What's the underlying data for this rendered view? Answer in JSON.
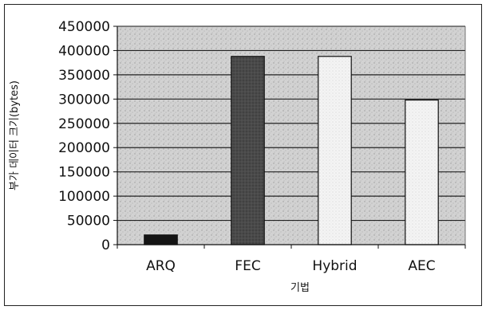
{
  "chart_data": {
    "type": "bar",
    "title": "",
    "xlabel": "기법",
    "ylabel": "부가 데이터 크기(bytes)",
    "categories": [
      "ARQ",
      "FEC",
      "Hybrid",
      "AEC"
    ],
    "values": [
      20000,
      388000,
      388000,
      298000
    ],
    "ylim": [
      0,
      450000
    ],
    "yticks": [
      0,
      50000,
      100000,
      150000,
      200000,
      250000,
      300000,
      350000,
      400000,
      450000
    ],
    "ytick_labels": [
      "0",
      "50000",
      "100000",
      "150000",
      "200000",
      "250000",
      "300000",
      "350000",
      "400000",
      "450000"
    ],
    "grid": true,
    "legend": "none",
    "bar_colors": [
      "#111111",
      "#555555",
      "#f2f2f2",
      "#f2f2f2"
    ],
    "plot_background": "#d6d6d6"
  }
}
